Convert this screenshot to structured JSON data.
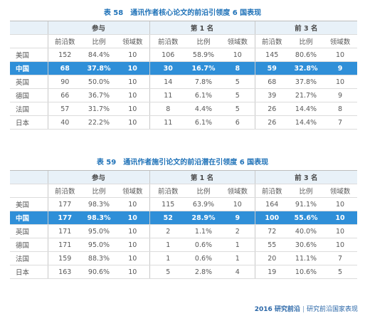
{
  "table1": {
    "caption": "表 58　通讯作者核心论文的前沿引领度 6 国表现",
    "groups": [
      "参与",
      "第 1 名",
      "前 3 名"
    ],
    "subheaders": [
      "前沿数",
      "比例",
      "领域数"
    ],
    "rows": [
      {
        "country": "美国",
        "cells": [
          "152",
          "84.4%",
          "10",
          "106",
          "58.9%",
          "10",
          "145",
          "80.6%",
          "10"
        ]
      },
      {
        "country": "中国",
        "cells": [
          "68",
          "37.8%",
          "10",
          "30",
          "16.7%",
          "8",
          "59",
          "32.8%",
          "9"
        ]
      },
      {
        "country": "英国",
        "cells": [
          "90",
          "50.0%",
          "10",
          "14",
          "7.8%",
          "5",
          "68",
          "37.8%",
          "10"
        ]
      },
      {
        "country": "德国",
        "cells": [
          "66",
          "36.7%",
          "10",
          "11",
          "6.1%",
          "5",
          "39",
          "21.7%",
          "9"
        ]
      },
      {
        "country": "法国",
        "cells": [
          "57",
          "31.7%",
          "10",
          "8",
          "4.4%",
          "5",
          "26",
          "14.4%",
          "8"
        ]
      },
      {
        "country": "日本",
        "cells": [
          "40",
          "22.2%",
          "10",
          "11",
          "6.1%",
          "6",
          "26",
          "14.4%",
          "7"
        ]
      }
    ]
  },
  "table2": {
    "caption": "表 59　通讯作者施引论文的前沿潜在引领度 6 国表现",
    "groups": [
      "参与",
      "第 1 名",
      "前 3 名"
    ],
    "subheaders": [
      "前沿数",
      "比例",
      "领域数"
    ],
    "rows": [
      {
        "country": "美国",
        "cells": [
          "177",
          "98.3%",
          "10",
          "115",
          "63.9%",
          "10",
          "164",
          "91.1%",
          "10"
        ]
      },
      {
        "country": "中国",
        "cells": [
          "177",
          "98.3%",
          "10",
          "52",
          "28.9%",
          "9",
          "100",
          "55.6%",
          "10"
        ]
      },
      {
        "country": "英国",
        "cells": [
          "171",
          "95.0%",
          "10",
          "2",
          "1.1%",
          "2",
          "72",
          "40.0%",
          "10"
        ]
      },
      {
        "country": "德国",
        "cells": [
          "171",
          "95.0%",
          "10",
          "1",
          "0.6%",
          "1",
          "55",
          "30.6%",
          "10"
        ]
      },
      {
        "country": "法国",
        "cells": [
          "159",
          "88.3%",
          "10",
          "1",
          "0.6%",
          "1",
          "20",
          "11.1%",
          "7"
        ]
      },
      {
        "country": "日本",
        "cells": [
          "163",
          "90.6%",
          "10",
          "5",
          "2.8%",
          "4",
          "19",
          "10.6%",
          "5"
        ]
      }
    ]
  },
  "footer": {
    "brand": "2016 研究前沿",
    "separator": "|",
    "section": "研究前沿国家表现"
  }
}
